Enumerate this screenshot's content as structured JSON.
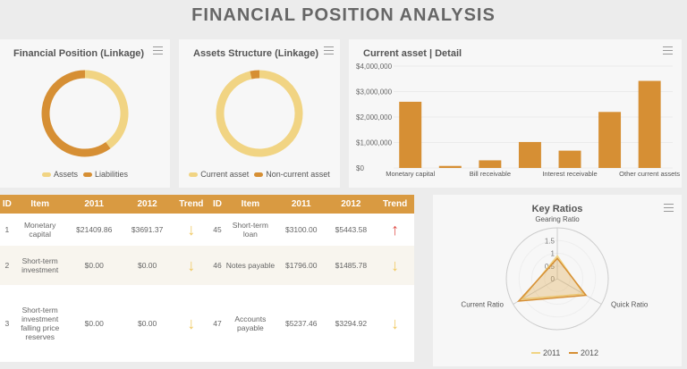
{
  "title": "FINANCIAL POSITION ANALYSIS",
  "colors": {
    "light": "#f1d483",
    "dark": "#d68f34",
    "up": "#e0504a"
  },
  "donut1": {
    "title": "Financial Position (Linkage)",
    "legend": [
      "Assets",
      "Liabilities"
    ],
    "values": [
      40,
      60
    ]
  },
  "donut2": {
    "title": "Assets Structure (Linkage)",
    "legend": [
      "Current asset",
      "Non-current asset"
    ],
    "values": [
      96.5,
      3.5
    ]
  },
  "chart_data": [
    {
      "type": "bar",
      "title": "Current asset | Detail",
      "categories": [
        "Monetary capital",
        "",
        "Bill receivable",
        "",
        "Interest receivable",
        "",
        "Other current assets"
      ],
      "values": [
        2600000,
        80000,
        300000,
        1020000,
        680000,
        2200000,
        3420000
      ],
      "yticks": [
        "$0",
        "$1,000,000",
        "$2,000,000",
        "$3,000,000",
        "$4,000,000"
      ],
      "ylim": [
        0,
        4000000
      ]
    },
    {
      "type": "radar",
      "title": "Key Ratios",
      "axes": [
        "Gearing Ratio",
        "Quick Ratio",
        "Current Ratio"
      ],
      "ticks": [
        "0",
        "0.5",
        "1",
        "1.5"
      ],
      "rmax": 2,
      "series": [
        {
          "name": "2011",
          "values": [
            0.9,
            1.2,
            1.6
          ]
        },
        {
          "name": "2012",
          "values": [
            0.8,
            1.3,
            1.75
          ]
        }
      ]
    }
  ],
  "table": {
    "headers": [
      "ID",
      "Item",
      "2011",
      "2012",
      "Trend",
      "ID",
      "Item",
      "2011",
      "2012",
      "Trend"
    ],
    "rows": [
      [
        "1",
        "Monetary capital",
        "$21409.86",
        "$3691.37",
        "↓",
        "45",
        "Short-term loan",
        "$3100.00",
        "$5443.58",
        "↑"
      ],
      [
        "2",
        "Short-term investment",
        "$0.00",
        "$0.00",
        "↓",
        "46",
        "Notes payable",
        "$1796.00",
        "$1485.78",
        "↓"
      ],
      [
        "3",
        "Short-term investment falling price reserves",
        "$0.00",
        "$0.00",
        "↓",
        "47",
        "Accounts payable",
        "$5237.46",
        "$3294.92",
        "↓"
      ]
    ]
  }
}
